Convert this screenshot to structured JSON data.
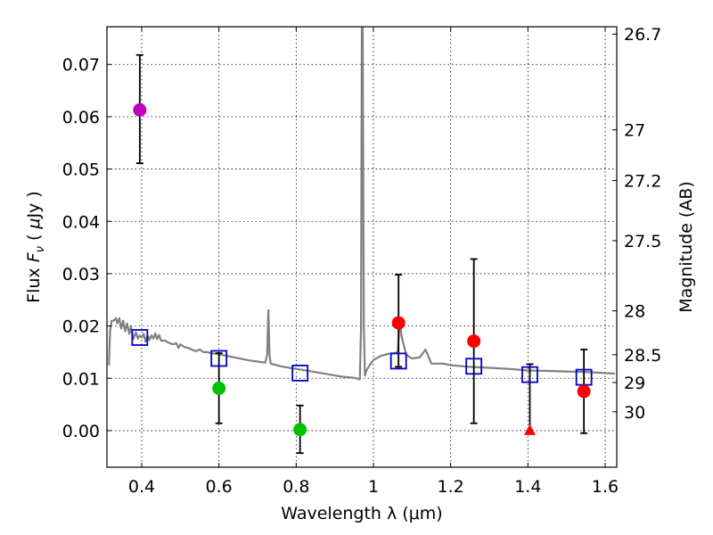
{
  "chart_data": {
    "type": "scatter",
    "xlabel": "Wavelength  λ (μm)",
    "ylabel": "Flux  F_ν  ( μJy )",
    "ylabel_parts": {
      "pre": "Flux  ",
      "F": "F",
      "nu": "ν",
      "mid": "  ( ",
      "mu": "μ",
      "post": "Jy )"
    },
    "y2label": "Magnitude (AB)",
    "xlim": [
      0.31,
      1.63
    ],
    "ylim": [
      -0.007,
      0.0772
    ],
    "x_ticks": [
      0.4,
      0.6,
      0.8,
      1.0,
      1.2,
      1.4,
      1.6
    ],
    "x_tick_labels": [
      "0.4",
      "0.6",
      "0.8",
      "1",
      "1.2",
      "1.4",
      "1.6"
    ],
    "y_ticks": [
      0.0,
      0.01,
      0.02,
      0.03,
      0.04,
      0.05,
      0.06,
      0.07
    ],
    "y_tick_labels": [
      "0.00",
      "0.01",
      "0.02",
      "0.03",
      "0.04",
      "0.05",
      "0.06",
      "0.07"
    ],
    "y2_ticks": [
      {
        "label": "26.7",
        "flux": 0.0758
      },
      {
        "label": "27",
        "flux": 0.0575
      },
      {
        "label": "27.2",
        "flux": 0.0478
      },
      {
        "label": "27.5",
        "flux": 0.0363
      },
      {
        "label": "28",
        "flux": 0.0229
      },
      {
        "label": "28.5",
        "flux": 0.0145
      },
      {
        "label": "29",
        "flux": 0.0092
      },
      {
        "label": "30",
        "flux": 0.0036
      }
    ],
    "grid": true,
    "colors": {
      "model": "#808080",
      "purple": "#bf00bf",
      "green": "#00c000",
      "red": "#ff0000",
      "square": "#0000cc",
      "error": "#000000"
    },
    "model_spectrum": {
      "name": "model SED",
      "x": [
        0.315,
        0.318,
        0.322,
        0.327,
        0.333,
        0.337,
        0.342,
        0.347,
        0.352,
        0.357,
        0.362,
        0.368,
        0.372,
        0.378,
        0.385,
        0.39,
        0.395,
        0.4,
        0.405,
        0.41,
        0.415,
        0.42,
        0.425,
        0.43,
        0.435,
        0.44,
        0.445,
        0.45,
        0.46,
        0.47,
        0.48,
        0.49,
        0.495,
        0.5,
        0.51,
        0.52,
        0.53,
        0.54,
        0.55,
        0.56,
        0.57,
        0.58,
        0.59,
        0.6,
        0.62,
        0.64,
        0.66,
        0.68,
        0.7,
        0.72,
        0.725,
        0.728,
        0.731,
        0.734,
        0.74,
        0.76,
        0.8,
        0.84,
        0.88,
        0.92,
        0.95,
        0.965,
        0.968,
        0.97,
        0.972,
        0.975,
        0.978,
        0.982,
        0.99,
        1.0,
        1.02,
        1.04,
        1.055,
        1.063,
        1.068,
        1.073,
        1.085,
        1.1,
        1.12,
        1.135,
        1.15,
        1.18,
        1.2,
        1.25,
        1.3,
        1.35,
        1.4,
        1.45,
        1.5,
        1.55,
        1.6,
        1.625
      ],
      "y": [
        0.0125,
        0.019,
        0.021,
        0.021,
        0.0215,
        0.0205,
        0.0215,
        0.0195,
        0.021,
        0.019,
        0.0205,
        0.0185,
        0.02,
        0.0175,
        0.0188,
        0.0176,
        0.0182,
        0.0178,
        0.0185,
        0.017,
        0.0182,
        0.0173,
        0.0182,
        0.0176,
        0.0186,
        0.0175,
        0.0183,
        0.0172,
        0.0172,
        0.0168,
        0.0165,
        0.0167,
        0.0158,
        0.0165,
        0.016,
        0.0158,
        0.0155,
        0.0152,
        0.0155,
        0.015,
        0.015,
        0.0148,
        0.0147,
        0.0146,
        0.0143,
        0.014,
        0.0137,
        0.0134,
        0.0132,
        0.013,
        0.0145,
        0.023,
        0.0145,
        0.0128,
        0.0127,
        0.0123,
        0.0118,
        0.0113,
        0.0108,
        0.0103,
        0.0101,
        0.0098,
        0.02,
        0.078,
        0.078,
        0.02,
        0.0105,
        0.0115,
        0.0125,
        0.0135,
        0.0143,
        0.0147,
        0.0148,
        0.015,
        0.0213,
        0.018,
        0.0145,
        0.0138,
        0.014,
        0.0155,
        0.0128,
        0.0128,
        0.0125,
        0.0122,
        0.012,
        0.0118,
        0.0115,
        0.0114,
        0.0113,
        0.0112,
        0.011,
        0.0109
      ]
    },
    "series": [
      {
        "name": "magenta point",
        "marker": "circle",
        "color": "#bf00bf",
        "x": [
          0.395
        ],
        "y": [
          0.0613
        ],
        "err_low": [
          0.0511
        ],
        "err_high": [
          0.0718
        ]
      },
      {
        "name": "green points",
        "marker": "circle",
        "color": "#00c000",
        "x": [
          0.6,
          0.81
        ],
        "y": [
          0.0081,
          0.0002
        ],
        "err_low": [
          0.0014,
          -0.0043
        ],
        "err_high": [
          0.0148,
          0.0048
        ]
      },
      {
        "name": "red points",
        "marker": "circle",
        "color": "#ff0000",
        "x": [
          1.065,
          1.26,
          1.545
        ],
        "y": [
          0.0206,
          0.0171,
          0.0075
        ],
        "err_low": [
          0.0122,
          0.0014,
          -0.0005
        ],
        "err_high": [
          0.0298,
          0.0328,
          0.0155
        ]
      },
      {
        "name": "red upper-limit point",
        "marker": "triangle",
        "color": "#ff0000",
        "x": [
          1.405
        ],
        "y": [
          0.0
        ],
        "err_low": [
          0.0
        ],
        "err_high": [
          0.0127
        ]
      },
      {
        "name": "model band fluxes",
        "marker": "square",
        "color": "#0000cc",
        "x": [
          0.395,
          0.6,
          0.81,
          1.065,
          1.26,
          1.405,
          1.545
        ],
        "y": [
          0.0178,
          0.0138,
          0.011,
          0.0133,
          0.0123,
          0.0107,
          0.0102
        ]
      }
    ]
  }
}
